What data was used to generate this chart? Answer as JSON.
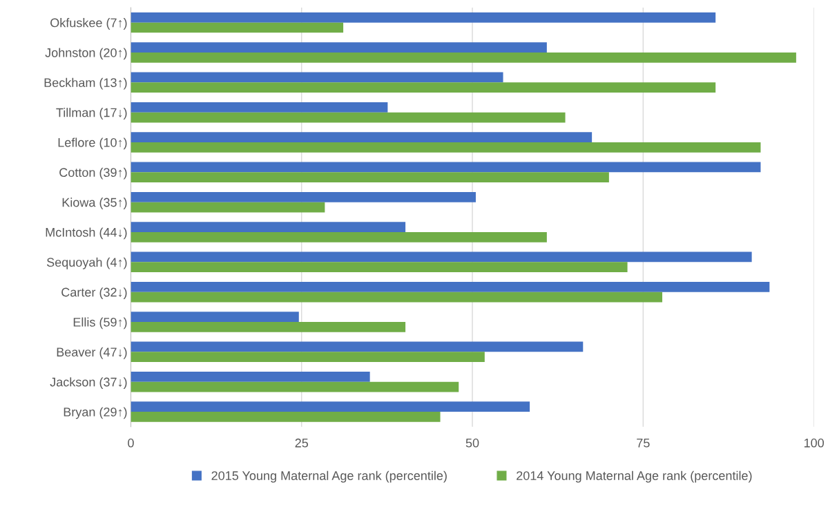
{
  "chart_data": {
    "type": "bar",
    "orientation": "horizontal",
    "categories": [
      "Okfuskee (7↑)",
      "Johnston (20↑)",
      "Beckham (13↑)",
      "Tillman (17↓)",
      "Leflore (10↑)",
      "Cotton (39↑)",
      "Kiowa (35↑)",
      "McIntosh (44↓)",
      "Sequoyah (4↑)",
      "Carter (32↓)",
      "Ellis (59↑)",
      "Beaver (47↓)",
      "Jackson (37↓)",
      "Bryan (29↑)"
    ],
    "series": [
      {
        "name": "2015 Young Maternal Age rank (percentile)",
        "color": "#4472c4",
        "values": [
          85.6,
          60.9,
          54.5,
          37.6,
          67.5,
          92.2,
          50.5,
          40.2,
          90.9,
          93.5,
          24.6,
          66.2,
          35.0,
          58.4
        ]
      },
      {
        "name": "2014 Young Maternal Age rank (percentile)",
        "color": "#70ad47",
        "values": [
          31.1,
          97.4,
          85.6,
          63.6,
          92.2,
          70.0,
          28.4,
          60.9,
          72.7,
          77.8,
          40.2,
          51.8,
          48.0,
          45.3
        ]
      }
    ],
    "xlim": [
      0,
      100
    ],
    "xticks": [
      0,
      25,
      50,
      75,
      100
    ],
    "grid": "x",
    "legend": "bottom"
  }
}
